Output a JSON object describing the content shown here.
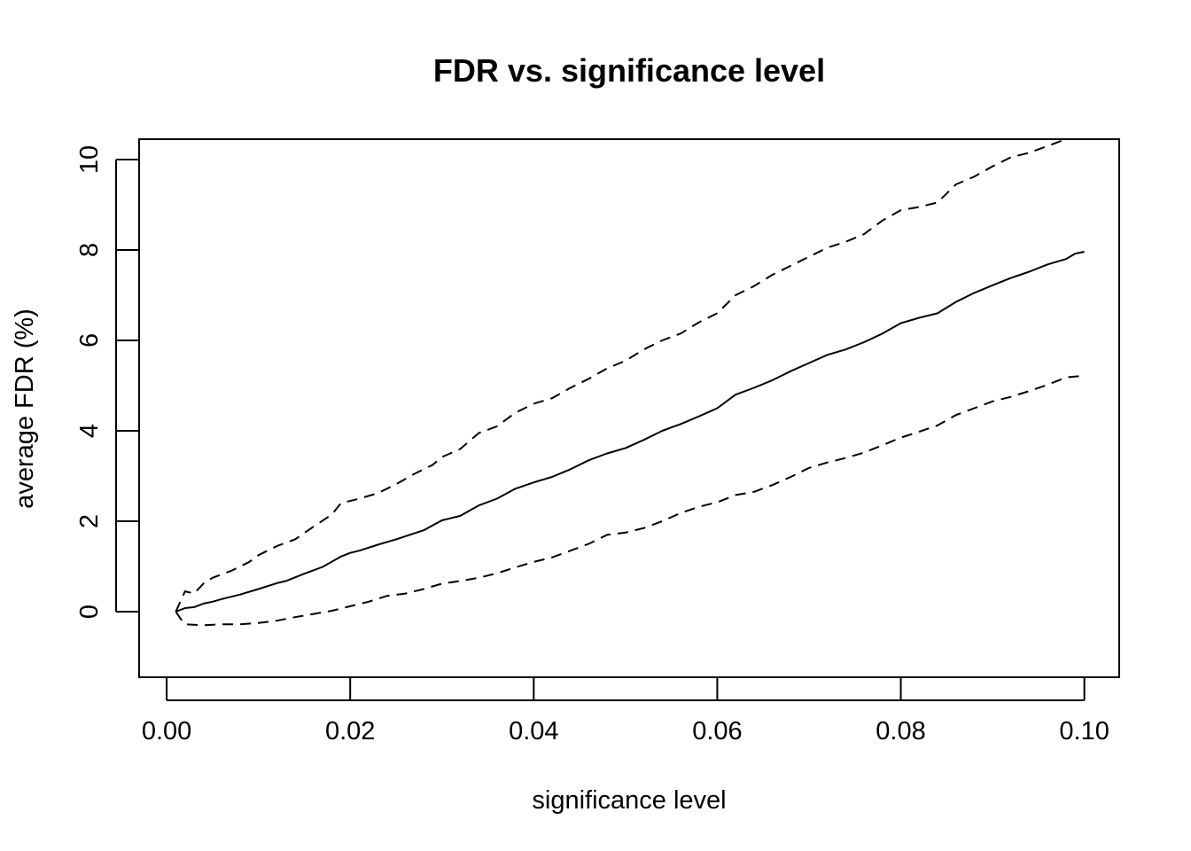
{
  "chart_data": {
    "type": "line",
    "title": "FDR vs. significance level",
    "xlabel": "significance level",
    "ylabel": "average FDR (%)",
    "xlim": [
      -0.003,
      0.1038
    ],
    "ylim": [
      -1.45,
      10.45
    ],
    "xticks": [
      0.0,
      0.02,
      0.04,
      0.06,
      0.08,
      0.1
    ],
    "xtick_labels": [
      "0.00",
      "0.02",
      "0.04",
      "0.06",
      "0.08",
      "0.10"
    ],
    "yticks": [
      0,
      2,
      4,
      6,
      8,
      10
    ],
    "ytick_labels": [
      "0",
      "2",
      "4",
      "6",
      "8",
      "10"
    ],
    "grid": false,
    "legend": "none",
    "series": [
      {
        "style": "solid",
        "points": [
          [
            0.001,
            0.0
          ],
          [
            0.002,
            0.08
          ],
          [
            0.003,
            0.1
          ],
          [
            0.004,
            0.18
          ],
          [
            0.005,
            0.22
          ],
          [
            0.006,
            0.28
          ],
          [
            0.008,
            0.38
          ],
          [
            0.01,
            0.5
          ],
          [
            0.012,
            0.63
          ],
          [
            0.013,
            0.68
          ],
          [
            0.015,
            0.84
          ],
          [
            0.017,
            0.99
          ],
          [
            0.019,
            1.22
          ],
          [
            0.02,
            1.3
          ],
          [
            0.021,
            1.35
          ],
          [
            0.023,
            1.48
          ],
          [
            0.025,
            1.6
          ],
          [
            0.028,
            1.8
          ],
          [
            0.03,
            2.02
          ],
          [
            0.032,
            2.12
          ],
          [
            0.034,
            2.35
          ],
          [
            0.036,
            2.5
          ],
          [
            0.038,
            2.72
          ],
          [
            0.04,
            2.86
          ],
          [
            0.042,
            2.98
          ],
          [
            0.044,
            3.15
          ],
          [
            0.046,
            3.35
          ],
          [
            0.048,
            3.5
          ],
          [
            0.05,
            3.62
          ],
          [
            0.052,
            3.8
          ],
          [
            0.054,
            4.0
          ],
          [
            0.056,
            4.15
          ],
          [
            0.058,
            4.32
          ],
          [
            0.06,
            4.5
          ],
          [
            0.062,
            4.8
          ],
          [
            0.064,
            4.95
          ],
          [
            0.066,
            5.12
          ],
          [
            0.068,
            5.32
          ],
          [
            0.07,
            5.5
          ],
          [
            0.072,
            5.68
          ],
          [
            0.074,
            5.8
          ],
          [
            0.076,
            5.96
          ],
          [
            0.078,
            6.15
          ],
          [
            0.08,
            6.38
          ],
          [
            0.082,
            6.5
          ],
          [
            0.084,
            6.6
          ],
          [
            0.086,
            6.85
          ],
          [
            0.088,
            7.05
          ],
          [
            0.09,
            7.22
          ],
          [
            0.092,
            7.38
          ],
          [
            0.094,
            7.52
          ],
          [
            0.096,
            7.68
          ],
          [
            0.098,
            7.8
          ],
          [
            0.099,
            7.92
          ],
          [
            0.1,
            7.96
          ]
        ]
      },
      {
        "style": "dashed",
        "points": [
          [
            0.001,
            0.0
          ],
          [
            0.002,
            0.45
          ],
          [
            0.003,
            0.4
          ],
          [
            0.004,
            0.62
          ],
          [
            0.005,
            0.75
          ],
          [
            0.007,
            0.9
          ],
          [
            0.009,
            1.1
          ],
          [
            0.01,
            1.25
          ],
          [
            0.012,
            1.45
          ],
          [
            0.014,
            1.6
          ],
          [
            0.016,
            1.88
          ],
          [
            0.018,
            2.15
          ],
          [
            0.019,
            2.4
          ],
          [
            0.021,
            2.5
          ],
          [
            0.023,
            2.62
          ],
          [
            0.025,
            2.82
          ],
          [
            0.027,
            3.05
          ],
          [
            0.029,
            3.25
          ],
          [
            0.03,
            3.42
          ],
          [
            0.032,
            3.6
          ],
          [
            0.034,
            3.95
          ],
          [
            0.036,
            4.1
          ],
          [
            0.038,
            4.4
          ],
          [
            0.04,
            4.6
          ],
          [
            0.042,
            4.72
          ],
          [
            0.044,
            4.95
          ],
          [
            0.046,
            5.15
          ],
          [
            0.048,
            5.38
          ],
          [
            0.05,
            5.55
          ],
          [
            0.052,
            5.8
          ],
          [
            0.054,
            6.0
          ],
          [
            0.056,
            6.15
          ],
          [
            0.058,
            6.4
          ],
          [
            0.06,
            6.6
          ],
          [
            0.062,
            7.0
          ],
          [
            0.064,
            7.2
          ],
          [
            0.066,
            7.45
          ],
          [
            0.068,
            7.65
          ],
          [
            0.07,
            7.85
          ],
          [
            0.072,
            8.05
          ],
          [
            0.074,
            8.18
          ],
          [
            0.076,
            8.35
          ],
          [
            0.078,
            8.65
          ],
          [
            0.08,
            8.88
          ],
          [
            0.082,
            8.95
          ],
          [
            0.084,
            9.05
          ],
          [
            0.086,
            9.45
          ],
          [
            0.088,
            9.62
          ],
          [
            0.09,
            9.85
          ],
          [
            0.092,
            10.05
          ],
          [
            0.094,
            10.15
          ],
          [
            0.096,
            10.3
          ],
          [
            0.098,
            10.45
          ]
        ]
      },
      {
        "style": "dashed",
        "points": [
          [
            0.001,
            0.0
          ],
          [
            0.0015,
            -0.15
          ],
          [
            0.002,
            -0.28
          ],
          [
            0.004,
            -0.3
          ],
          [
            0.006,
            -0.28
          ],
          [
            0.008,
            -0.28
          ],
          [
            0.01,
            -0.25
          ],
          [
            0.012,
            -0.2
          ],
          [
            0.014,
            -0.12
          ],
          [
            0.016,
            -0.05
          ],
          [
            0.018,
            0.02
          ],
          [
            0.02,
            0.12
          ],
          [
            0.022,
            0.22
          ],
          [
            0.024,
            0.35
          ],
          [
            0.026,
            0.4
          ],
          [
            0.028,
            0.5
          ],
          [
            0.03,
            0.62
          ],
          [
            0.032,
            0.68
          ],
          [
            0.034,
            0.75
          ],
          [
            0.036,
            0.85
          ],
          [
            0.038,
            0.98
          ],
          [
            0.04,
            1.1
          ],
          [
            0.042,
            1.2
          ],
          [
            0.044,
            1.35
          ],
          [
            0.046,
            1.5
          ],
          [
            0.048,
            1.7
          ],
          [
            0.05,
            1.75
          ],
          [
            0.052,
            1.85
          ],
          [
            0.054,
            2.0
          ],
          [
            0.056,
            2.18
          ],
          [
            0.058,
            2.32
          ],
          [
            0.06,
            2.42
          ],
          [
            0.062,
            2.58
          ],
          [
            0.064,
            2.65
          ],
          [
            0.066,
            2.8
          ],
          [
            0.068,
            2.98
          ],
          [
            0.07,
            3.18
          ],
          [
            0.072,
            3.3
          ],
          [
            0.074,
            3.4
          ],
          [
            0.076,
            3.52
          ],
          [
            0.078,
            3.68
          ],
          [
            0.08,
            3.85
          ],
          [
            0.082,
            3.98
          ],
          [
            0.084,
            4.12
          ],
          [
            0.086,
            4.35
          ],
          [
            0.088,
            4.5
          ],
          [
            0.09,
            4.65
          ],
          [
            0.092,
            4.75
          ],
          [
            0.094,
            4.88
          ],
          [
            0.096,
            5.02
          ],
          [
            0.098,
            5.18
          ],
          [
            0.1,
            5.22
          ]
        ]
      }
    ]
  }
}
